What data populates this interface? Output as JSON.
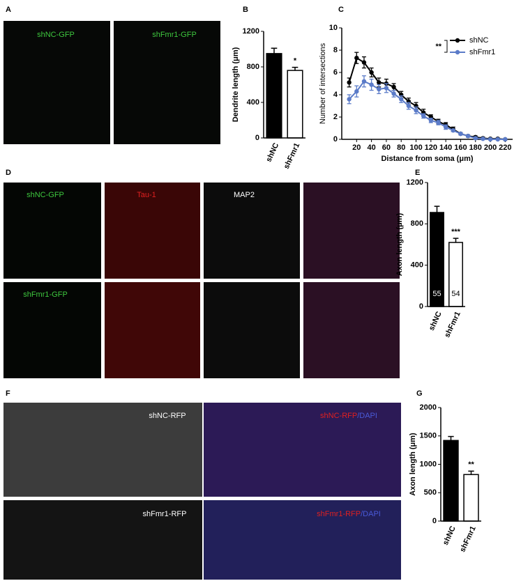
{
  "panels": {
    "labels": [
      "A",
      "B",
      "C",
      "D",
      "E",
      "F",
      "G"
    ]
  },
  "images": {
    "a": [
      "shNC-GFP",
      "shFmr1-GFP"
    ],
    "d": [
      "shNC-GFP",
      "Tau-1",
      "MAP2",
      "shFmr1-GFP"
    ],
    "f": [
      "shNC-RFP",
      "shNC-RFP",
      "/DAPI",
      "shFmr1-RFP",
      "shFmr1-RFP",
      "/DAPI"
    ]
  },
  "chart_data": [
    {
      "type": "bar",
      "ylabel": "Dendrite length (μm)",
      "categories": [
        "shNC",
        "shFmr1"
      ],
      "values": [
        950,
        760
      ],
      "errors": [
        60,
        35
      ],
      "colors": [
        "#000000",
        "#ffffff"
      ],
      "ylim": [
        0,
        1200
      ],
      "yticks": [
        0,
        400,
        800,
        1200
      ],
      "annotation": "*"
    },
    {
      "type": "line",
      "ylabel": "Number of intersections",
      "xlabel": "Distance from soma (μm)",
      "x": [
        10,
        20,
        30,
        40,
        50,
        60,
        70,
        80,
        90,
        100,
        110,
        120,
        130,
        140,
        150,
        160,
        170,
        180,
        190,
        200,
        210,
        220
      ],
      "series": [
        {
          "name": "shNC",
          "color": "#000000",
          "values": [
            5.1,
            7.3,
            6.9,
            6.0,
            5.1,
            5.0,
            4.7,
            4.0,
            3.4,
            3.0,
            2.4,
            2.0,
            1.6,
            1.3,
            0.9,
            0.5,
            0.3,
            0.2,
            0.1,
            0.05,
            0.05,
            0
          ],
          "errors": [
            0.4,
            0.5,
            0.5,
            0.4,
            0.4,
            0.4,
            0.3,
            0.3,
            0.3,
            0.3,
            0.3,
            0.2,
            0.2,
            0.2,
            0.2,
            0.1,
            0.1,
            0.1,
            0.1,
            0.05,
            0.05,
            0.05
          ]
        },
        {
          "name": "shFmr1",
          "color": "#5b7bc8",
          "values": [
            3.6,
            4.3,
            5.2,
            4.9,
            4.5,
            4.6,
            4.1,
            3.6,
            3.0,
            2.6,
            2.1,
            1.7,
            1.5,
            1.1,
            0.8,
            0.5,
            0.3,
            0.1,
            0.05,
            0,
            0,
            0
          ],
          "errors": [
            0.4,
            0.5,
            0.5,
            0.5,
            0.4,
            0.4,
            0.3,
            0.3,
            0.3,
            0.3,
            0.2,
            0.2,
            0.2,
            0.2,
            0.1,
            0.1,
            0.1,
            0.1,
            0.05,
            0.05,
            0.05,
            0.05
          ]
        }
      ],
      "xlim": [
        0,
        230
      ],
      "xticks": [
        20,
        40,
        60,
        80,
        100,
        120,
        140,
        160,
        180,
        200,
        220
      ],
      "ylim": [
        0,
        10
      ],
      "yticks": [
        0,
        2,
        4,
        6,
        8,
        10
      ],
      "annotation": "**"
    },
    {
      "type": "bar",
      "ylabel": "Axon length (μm)",
      "categories": [
        "shNC",
        "shFmr1"
      ],
      "values": [
        910,
        620
      ],
      "errors": [
        60,
        40
      ],
      "colors": [
        "#000000",
        "#ffffff"
      ],
      "n_labels": [
        "55",
        "54"
      ],
      "ylim": [
        0,
        1200
      ],
      "yticks": [
        0,
        400,
        800,
        1200
      ],
      "annotation": "***"
    },
    {
      "type": "bar",
      "ylabel": "Axon length (μm)",
      "categories": [
        "shNC",
        "shFmr1"
      ],
      "values": [
        1420,
        820
      ],
      "errors": [
        70,
        60
      ],
      "colors": [
        "#000000",
        "#ffffff"
      ],
      "ylim": [
        0,
        2000
      ],
      "yticks": [
        0,
        500,
        1000,
        1500,
        2000
      ],
      "annotation": "**"
    }
  ]
}
